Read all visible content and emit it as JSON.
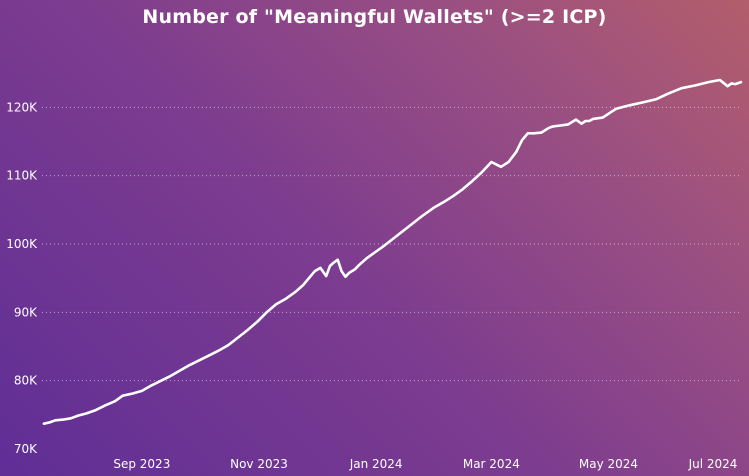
{
  "colors": {
    "line": "#ffffff",
    "text": "#ffffff",
    "background_start": "#5f2e96",
    "background_end": "#b35e6b"
  },
  "chart_data": {
    "type": "line",
    "title": "Number of \"Meaningful Wallets\" (>=2 ICP)",
    "xlabel": "",
    "ylabel": "",
    "grid": true,
    "ylim": [
      70000,
      124000
    ],
    "xlim": [
      "2023-07-11",
      "2024-07-09"
    ],
    "y_ticks": [
      70000,
      80000,
      90000,
      100000,
      110000,
      120000
    ],
    "y_tick_labels": [
      "70K",
      "80K",
      "90K",
      "100K",
      "110K",
      "120K"
    ],
    "x_ticks": [
      "2023-09-01",
      "2023-11-01",
      "2024-01-01",
      "2024-03-01",
      "2024-05-01",
      "2024-07-01"
    ],
    "x_tick_labels": [
      "Sep 2023",
      "Nov 2023",
      "Jan 2024",
      "Mar 2024",
      "May 2024",
      "Jul 2024"
    ],
    "series": [
      {
        "x": [
          "2023-07-12",
          "2023-07-15",
          "2023-07-18",
          "2023-07-22",
          "2023-07-26",
          "2023-07-30",
          "2023-08-03",
          "2023-08-08",
          "2023-08-13",
          "2023-08-18",
          "2023-08-22",
          "2023-08-27",
          "2023-09-01",
          "2023-09-06",
          "2023-09-11",
          "2023-09-16",
          "2023-09-21",
          "2023-09-26",
          "2023-10-01",
          "2023-10-06",
          "2023-10-11",
          "2023-10-16",
          "2023-10-21",
          "2023-10-26",
          "2023-10-31",
          "2023-11-05",
          "2023-11-10",
          "2023-11-15",
          "2023-11-20",
          "2023-11-24",
          "2023-11-27",
          "2023-11-30",
          "2023-12-03",
          "2023-12-06",
          "2023-12-08",
          "2023-12-10",
          "2023-12-12",
          "2023-12-14",
          "2023-12-16",
          "2023-12-18",
          "2023-12-21",
          "2023-12-23",
          "2023-12-25",
          "2023-12-27",
          "2023-12-29",
          "2024-01-01",
          "2024-01-05",
          "2024-01-10",
          "2024-01-15",
          "2024-01-20",
          "2024-01-25",
          "2024-01-31",
          "2024-02-05",
          "2024-02-10",
          "2024-02-15",
          "2024-02-20",
          "2024-02-25",
          "2024-03-01",
          "2024-03-06",
          "2024-03-10",
          "2024-03-14",
          "2024-03-17",
          "2024-03-20",
          "2024-03-23",
          "2024-03-27",
          "2024-03-31",
          "2024-04-02",
          "2024-04-10",
          "2024-04-14",
          "2024-04-17",
          "2024-04-19",
          "2024-04-21",
          "2024-04-23",
          "2024-04-28",
          "2024-05-05",
          "2024-05-12",
          "2024-05-20",
          "2024-05-26",
          "2024-06-01",
          "2024-06-08",
          "2024-06-15",
          "2024-06-22",
          "2024-06-28",
          "2024-07-02",
          "2024-07-04",
          "2024-07-06",
          "2024-07-09"
        ],
        "y": [
          73700,
          73900,
          74200,
          74300,
          74500,
          74900,
          75200,
          75700,
          76400,
          77000,
          77800,
          78100,
          78500,
          79300,
          80000,
          80700,
          81500,
          82300,
          83000,
          83700,
          84400,
          85200,
          86300,
          87400,
          88600,
          90000,
          91200,
          92000,
          93000,
          94000,
          95000,
          96000,
          96500,
          95300,
          96800,
          97300,
          97700,
          96000,
          95200,
          95800,
          96300,
          96900,
          97400,
          97900,
          98300,
          98900,
          99700,
          100800,
          101900,
          103000,
          104100,
          105300,
          106100,
          107000,
          108000,
          109200,
          110500,
          112000,
          111300,
          112000,
          113500,
          115200,
          116200,
          116200,
          116300,
          117000,
          117200,
          117500,
          118200,
          117600,
          118000,
          118000,
          118300,
          118500,
          119800,
          120300,
          120800,
          121200,
          122000,
          122800,
          123200,
          123700,
          124000,
          123100,
          123500,
          123400,
          123700
        ]
      }
    ]
  }
}
